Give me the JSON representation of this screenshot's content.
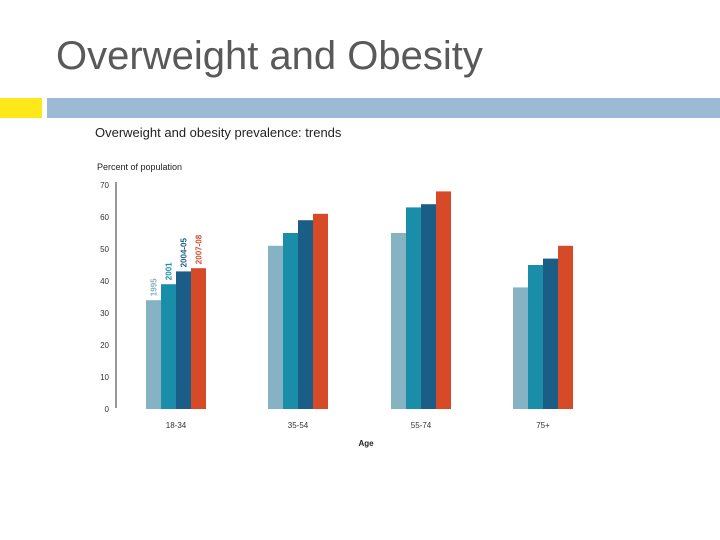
{
  "slide": {
    "title": "Overweight and Obesity"
  },
  "colors": {
    "accent_yellow": "#ffe81a",
    "accent_blue": "#9cbad6"
  },
  "chart_data": {
    "type": "bar",
    "title": "Overweight and obesity prevalence: trends",
    "ylabel": "Percent of population",
    "xlabel": "Age",
    "categories": [
      "18-34",
      "35-54",
      "55-74",
      "75+"
    ],
    "yticks": [
      0,
      10,
      20,
      30,
      40,
      50,
      60,
      70
    ],
    "ylim": [
      0,
      70
    ],
    "grid": false,
    "legend": "inline labels above first group",
    "series": [
      {
        "name": "1995",
        "color": "#86b3c3",
        "values": [
          34,
          51,
          55,
          38
        ]
      },
      {
        "name": "2001",
        "color": "#1a8ea8",
        "values": [
          39,
          55,
          63,
          45
        ]
      },
      {
        "name": "2004-05",
        "color": "#1a5d86",
        "values": [
          43,
          59,
          64,
          47
        ]
      },
      {
        "name": "2007-08",
        "color": "#d64a28",
        "values": [
          44,
          61,
          68,
          51
        ]
      }
    ]
  }
}
